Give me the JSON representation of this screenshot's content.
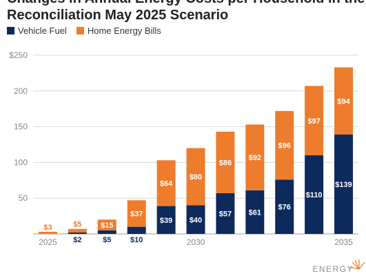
{
  "title": {
    "line1": "Changes in Annual Energy Costs per Household in the IE",
    "line2": "Reconciliation May 2025 Scenario"
  },
  "colors": {
    "vehicle_fuel": "#0d2a5c",
    "home_energy": "#ee7c2d"
  },
  "logo": {
    "text": "ENERGY",
    "icon": "sun-icon"
  },
  "chart_data": {
    "type": "bar",
    "stacked": true,
    "categories": [
      "2025",
      "2026",
      "2027",
      "2028",
      "2029",
      "2030",
      "2031",
      "2032",
      "2033",
      "2034",
      "2035"
    ],
    "x_tick_labels": [
      "2025",
      "",
      "",
      "",
      "",
      "2030",
      "",
      "",
      "",
      "",
      "2035"
    ],
    "series": [
      {
        "name": "Vehicle Fuel",
        "color": "#0d2a5c",
        "values": [
          0,
          2,
          5,
          10,
          39,
          40,
          57,
          61,
          76,
          110,
          139
        ],
        "labels": [
          "",
          "$2",
          "$5",
          "$10",
          "$39",
          "$40",
          "$57",
          "$61",
          "$76",
          "$110",
          "$139"
        ]
      },
      {
        "name": "Home Energy Bills",
        "color": "#ee7c2d",
        "values": [
          3,
          5,
          15,
          37,
          64,
          80,
          86,
          92,
          96,
          97,
          94
        ],
        "labels": [
          "$3",
          "$5",
          "$15",
          "$37",
          "$64",
          "$80",
          "$86",
          "$92",
          "$96",
          "$97",
          "$94"
        ]
      }
    ],
    "ylim": [
      0,
      250
    ],
    "y_ticks": [
      0,
      50,
      100,
      150,
      200,
      250
    ],
    "y_tick_labels": [
      "",
      "50",
      "100",
      "150",
      "200",
      "$250"
    ],
    "grid": true,
    "legend_position": "top-left"
  }
}
